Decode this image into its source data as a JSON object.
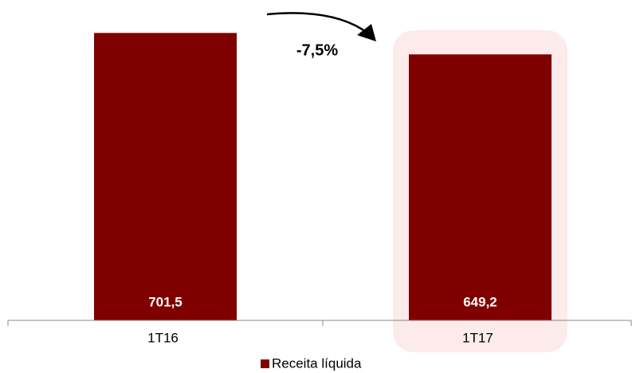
{
  "chart_data": {
    "type": "bar",
    "categories": [
      "1T16",
      "1T17"
    ],
    "series": [
      {
        "name": "Receita líquida",
        "color": "#800000",
        "values": [
          701.5,
          649.2
        ],
        "value_labels": [
          "701,5",
          "649,2"
        ]
      }
    ],
    "annotations": [
      "-7,5%"
    ],
    "ylim": [
      0,
      780
    ]
  }
}
